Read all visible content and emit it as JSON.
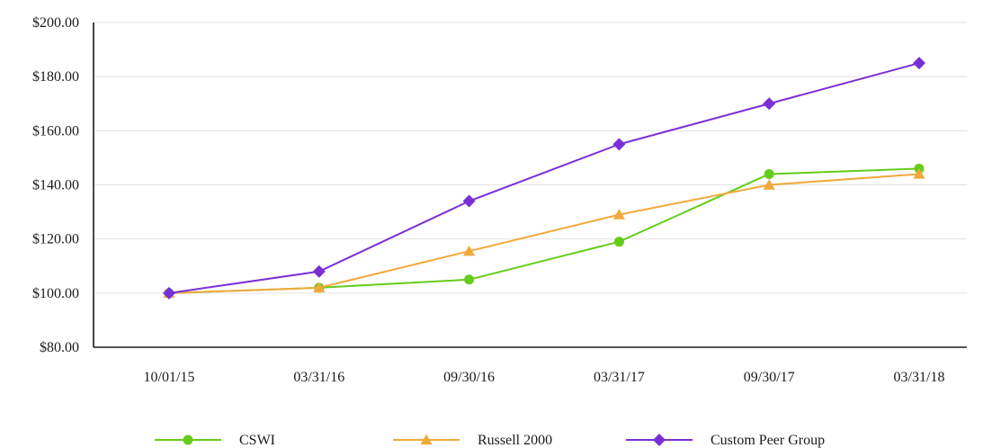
{
  "chart_data": {
    "type": "line",
    "title": "",
    "xlabel": "",
    "ylabel": "",
    "categories": [
      "10/01/15",
      "03/31/16",
      "09/30/16",
      "03/31/17",
      "09/30/17",
      "03/31/18"
    ],
    "ylim": [
      80,
      200
    ],
    "yticks": [
      80,
      100,
      120,
      140,
      160,
      180,
      200
    ],
    "ytick_labels": [
      "$80.00",
      "$100.00",
      "$120.00",
      "$140.00",
      "$160.00",
      "$180.00",
      "$200.00"
    ],
    "grid": true,
    "legend_position": "bottom",
    "series": [
      {
        "name": "CSWI",
        "color": "#66cc1a",
        "marker": "circle",
        "values": [
          100,
          102,
          105,
          119,
          144,
          146
        ]
      },
      {
        "name": "Russell 2000",
        "color": "#f2a93b",
        "marker": "triangle",
        "values": [
          100,
          102,
          115.5,
          129,
          140,
          144
        ]
      },
      {
        "name": "Custom Peer Group",
        "color": "#7a2fd6",
        "marker": "diamond",
        "values": [
          100,
          108,
          134,
          155,
          170,
          185
        ]
      }
    ]
  }
}
